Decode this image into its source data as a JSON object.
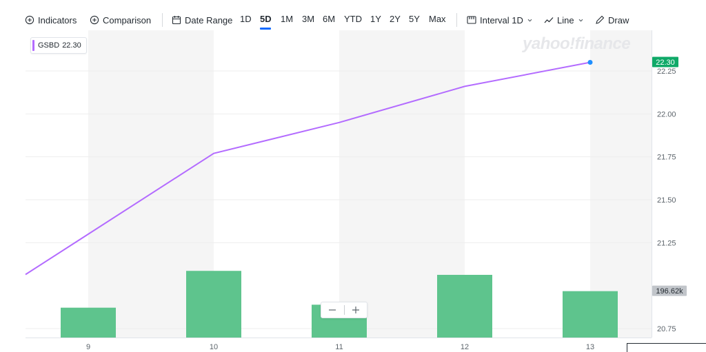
{
  "toolbar": {
    "indicators": "Indicators",
    "comparison": "Comparison",
    "date_range": "Date Range",
    "ranges": [
      "1D",
      "5D",
      "1M",
      "3M",
      "6M",
      "YTD",
      "1Y",
      "2Y",
      "5Y",
      "Max"
    ],
    "active_range": "5D",
    "interval": "Interval 1D",
    "line": "Line",
    "draw": "Draw"
  },
  "legend": {
    "symbol": "GSBD",
    "value": "22.30"
  },
  "watermark": "yahoo!finance",
  "colors": {
    "price_line": "#b36bff",
    "volume_bar": "#5ec48d",
    "price_tag": "#0fa968",
    "volume_tag": "#c1c5ca",
    "active_range_underline": "#0f69ff",
    "last_point": "#1e8fff"
  },
  "chart_data": {
    "type": "line",
    "x": [
      "9",
      "10",
      "11",
      "12",
      "13"
    ],
    "series": [
      {
        "name": "GSBD",
        "values": [
          21.3,
          21.77,
          21.95,
          22.16,
          22.3
        ]
      },
      {
        "name": "Volume",
        "values": [
          180000,
          217000,
          183000,
          213000,
          196620
        ]
      }
    ],
    "y_ticks": [
      "22.25",
      "22.00",
      "21.75",
      "21.50",
      "21.25",
      "20.75"
    ],
    "ylim": [
      20.73,
      22.4
    ],
    "last_price_label": "22.30",
    "last_volume_label": "196.62k",
    "grid": true
  }
}
